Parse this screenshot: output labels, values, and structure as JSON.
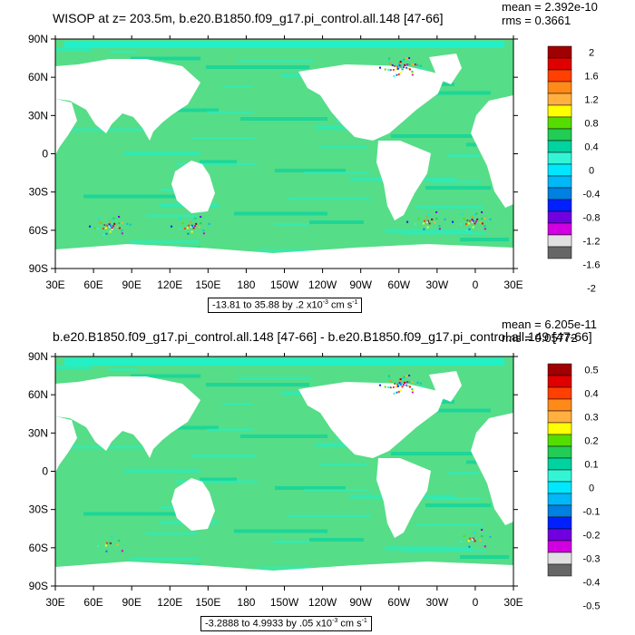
{
  "colors": {
    "land": "#ffffff",
    "ocean_low": "#55dd88",
    "ocean_mid": "#22f0c8",
    "ocean_hi": "#00d2a0"
  },
  "chart_data": [
    {
      "type": "heatmap",
      "title": "WISOP at z= 203.5m, b.e20.B1850.f09_g17.pi_control.all.148 [47-66]",
      "stats": {
        "mean": "mean = 2.392e-10",
        "rms": "rms = 0.3661"
      },
      "range_label": {
        "main": "-13.81 to 35.88 by .2 x10",
        "exp": "-3",
        "unit": " cm s",
        "unit_exp": "-1"
      },
      "x_ticks": [
        "30E",
        "60E",
        "90E",
        "120E",
        "150E",
        "180",
        "150W",
        "120W",
        "90W",
        "60W",
        "30W",
        "0",
        "30E"
      ],
      "y_ticks": [
        "90N",
        "60N",
        "30N",
        "0",
        "30S",
        "60S",
        "90S"
      ],
      "colorbar": {
        "labels": [
          "2",
          "1.6",
          "1.2",
          "0.8",
          "0.4",
          "0",
          "-0.4",
          "-0.8",
          "-1.2",
          "-1.6",
          "-2"
        ],
        "colors": [
          "#a00000",
          "#e00000",
          "#ff4000",
          "#ff8a1a",
          "#ffb040",
          "#ffff00",
          "#55dd00",
          "#22cc55",
          "#00d2a0",
          "#33f5d5",
          "#00e8ff",
          "#00b8f5",
          "#0080e0",
          "#0020ff",
          "#7000e0",
          "#d000e0",
          "#e0e0e0",
          "#666666"
        ]
      }
    },
    {
      "type": "heatmap",
      "title": "b.e20.B1850.f09_g17.pi_control.all.148 [47-66] - b.e20.B1850.f09_g17.pi_control.all.149 [47-66]",
      "stats": {
        "mean": "mean = 6.205e-11",
        "rms": "rms = 0.05772"
      },
      "range_label": {
        "main": "-3.2888 to 4.9933 by .05 x10",
        "exp": "-3",
        "unit": " cm s",
        "unit_exp": "-1"
      },
      "x_ticks": [
        "30E",
        "60E",
        "90E",
        "120E",
        "150E",
        "180",
        "150W",
        "120W",
        "90W",
        "60W",
        "30W",
        "0",
        "30E"
      ],
      "y_ticks": [
        "90N",
        "60N",
        "30N",
        "0",
        "30S",
        "60S",
        "90S"
      ],
      "colorbar": {
        "labels": [
          "0.5",
          "0.4",
          "0.3",
          "0.2",
          "0.1",
          "0",
          "-0.1",
          "-0.2",
          "-0.3",
          "-0.4",
          "-0.5"
        ],
        "colors": [
          "#a00000",
          "#e00000",
          "#ff4000",
          "#ff8a1a",
          "#ffb040",
          "#ffff00",
          "#55dd00",
          "#22cc55",
          "#00d2a0",
          "#33f5d5",
          "#00e8ff",
          "#00b8f5",
          "#0080e0",
          "#0020ff",
          "#7000e0",
          "#d000e0",
          "#e0e0e0",
          "#666666"
        ]
      }
    }
  ]
}
